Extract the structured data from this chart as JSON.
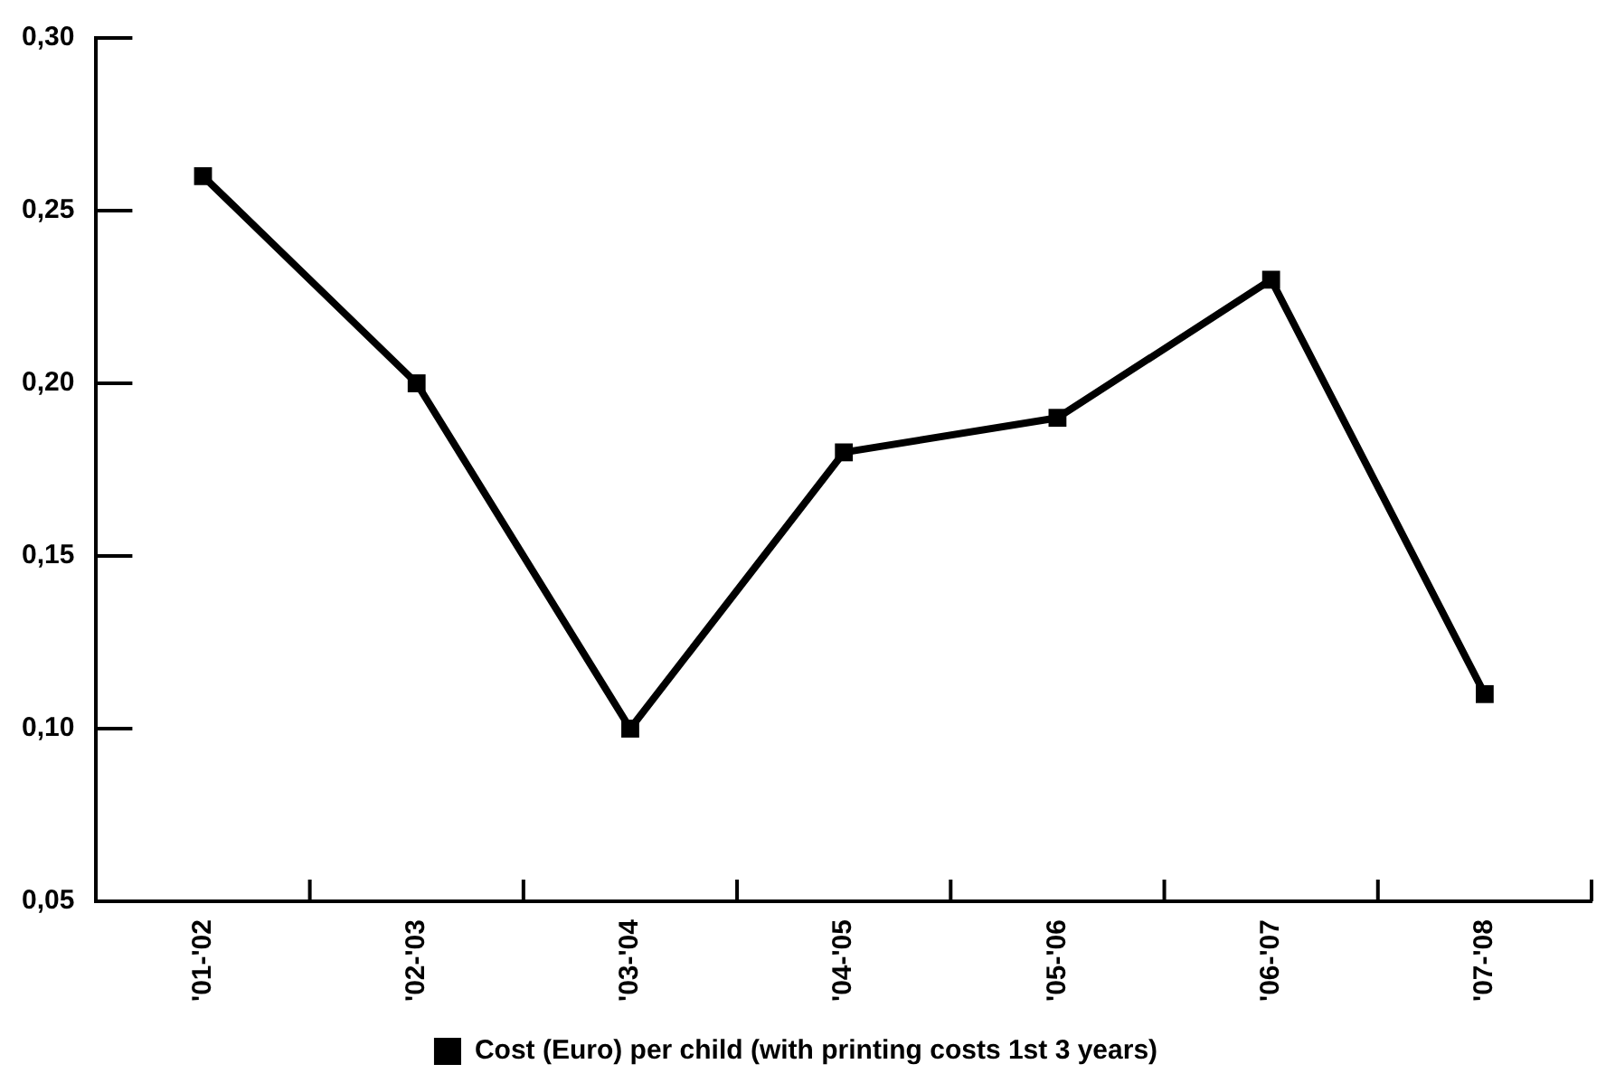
{
  "chart_data": {
    "type": "line",
    "categories": [
      "'01-'02",
      "'02-'03",
      "'03-'04",
      "'04-'05",
      "'05-'06",
      "'06-'07",
      "'07-'08"
    ],
    "series": [
      {
        "name": "Cost (Euro) per child (with printing costs 1st 3 years)",
        "color": "#000000",
        "values": [
          0.26,
          0.2,
          0.1,
          0.18,
          0.19,
          0.23,
          0.11
        ]
      }
    ],
    "ylim": [
      0.05,
      0.3
    ],
    "yticks": [
      {
        "value": 0.05,
        "label": "0,05"
      },
      {
        "value": 0.1,
        "label": "0,10"
      },
      {
        "value": 0.15,
        "label": "0,15"
      },
      {
        "value": 0.2,
        "label": "0,20"
      },
      {
        "value": 0.25,
        "label": "0,25"
      },
      {
        "value": 0.3,
        "label": "0,30"
      }
    ],
    "grid": false,
    "legend": "bottom",
    "marker": "square",
    "line_style": "solid"
  }
}
